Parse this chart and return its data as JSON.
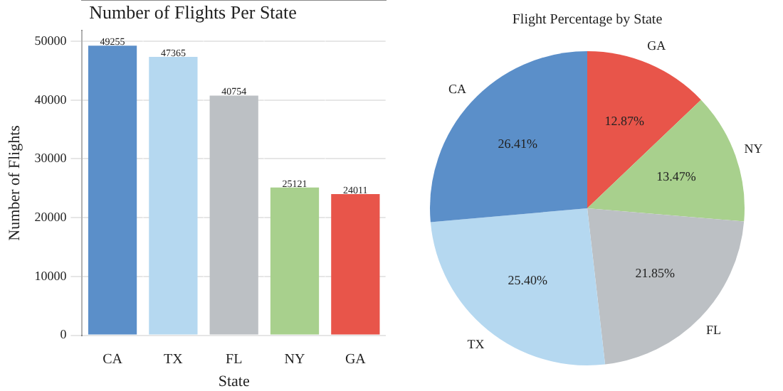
{
  "chart_data": [
    {
      "type": "bar",
      "title": "Number of Flights Per State",
      "xlabel": "State",
      "ylabel": "Number of Flights",
      "categories": [
        "CA",
        "TX",
        "FL",
        "NY",
        "GA"
      ],
      "values": [
        49255,
        47365,
        40754,
        25121,
        24011
      ],
      "colors": [
        "#5b8fc9",
        "#b5d8f0",
        "#bcc0c4",
        "#a8d08d",
        "#e8554a"
      ],
      "ylim": [
        0,
        51800
      ],
      "yticks": [
        0,
        10000,
        20000,
        30000,
        40000,
        50000
      ],
      "grid": true,
      "data_labels": true
    },
    {
      "type": "pie",
      "title": "Flight Percentage by State",
      "categories": [
        "CA",
        "TX",
        "FL",
        "NY",
        "GA"
      ],
      "values": [
        26.41,
        25.4,
        21.85,
        13.47,
        12.87
      ],
      "colors": [
        "#5b8fc9",
        "#b5d8f0",
        "#bcc0c4",
        "#a8d08d",
        "#e8554a"
      ],
      "value_labels": [
        "26.41%",
        "25.40%",
        "21.85%",
        "13.47%",
        "12.87%"
      ]
    }
  ]
}
